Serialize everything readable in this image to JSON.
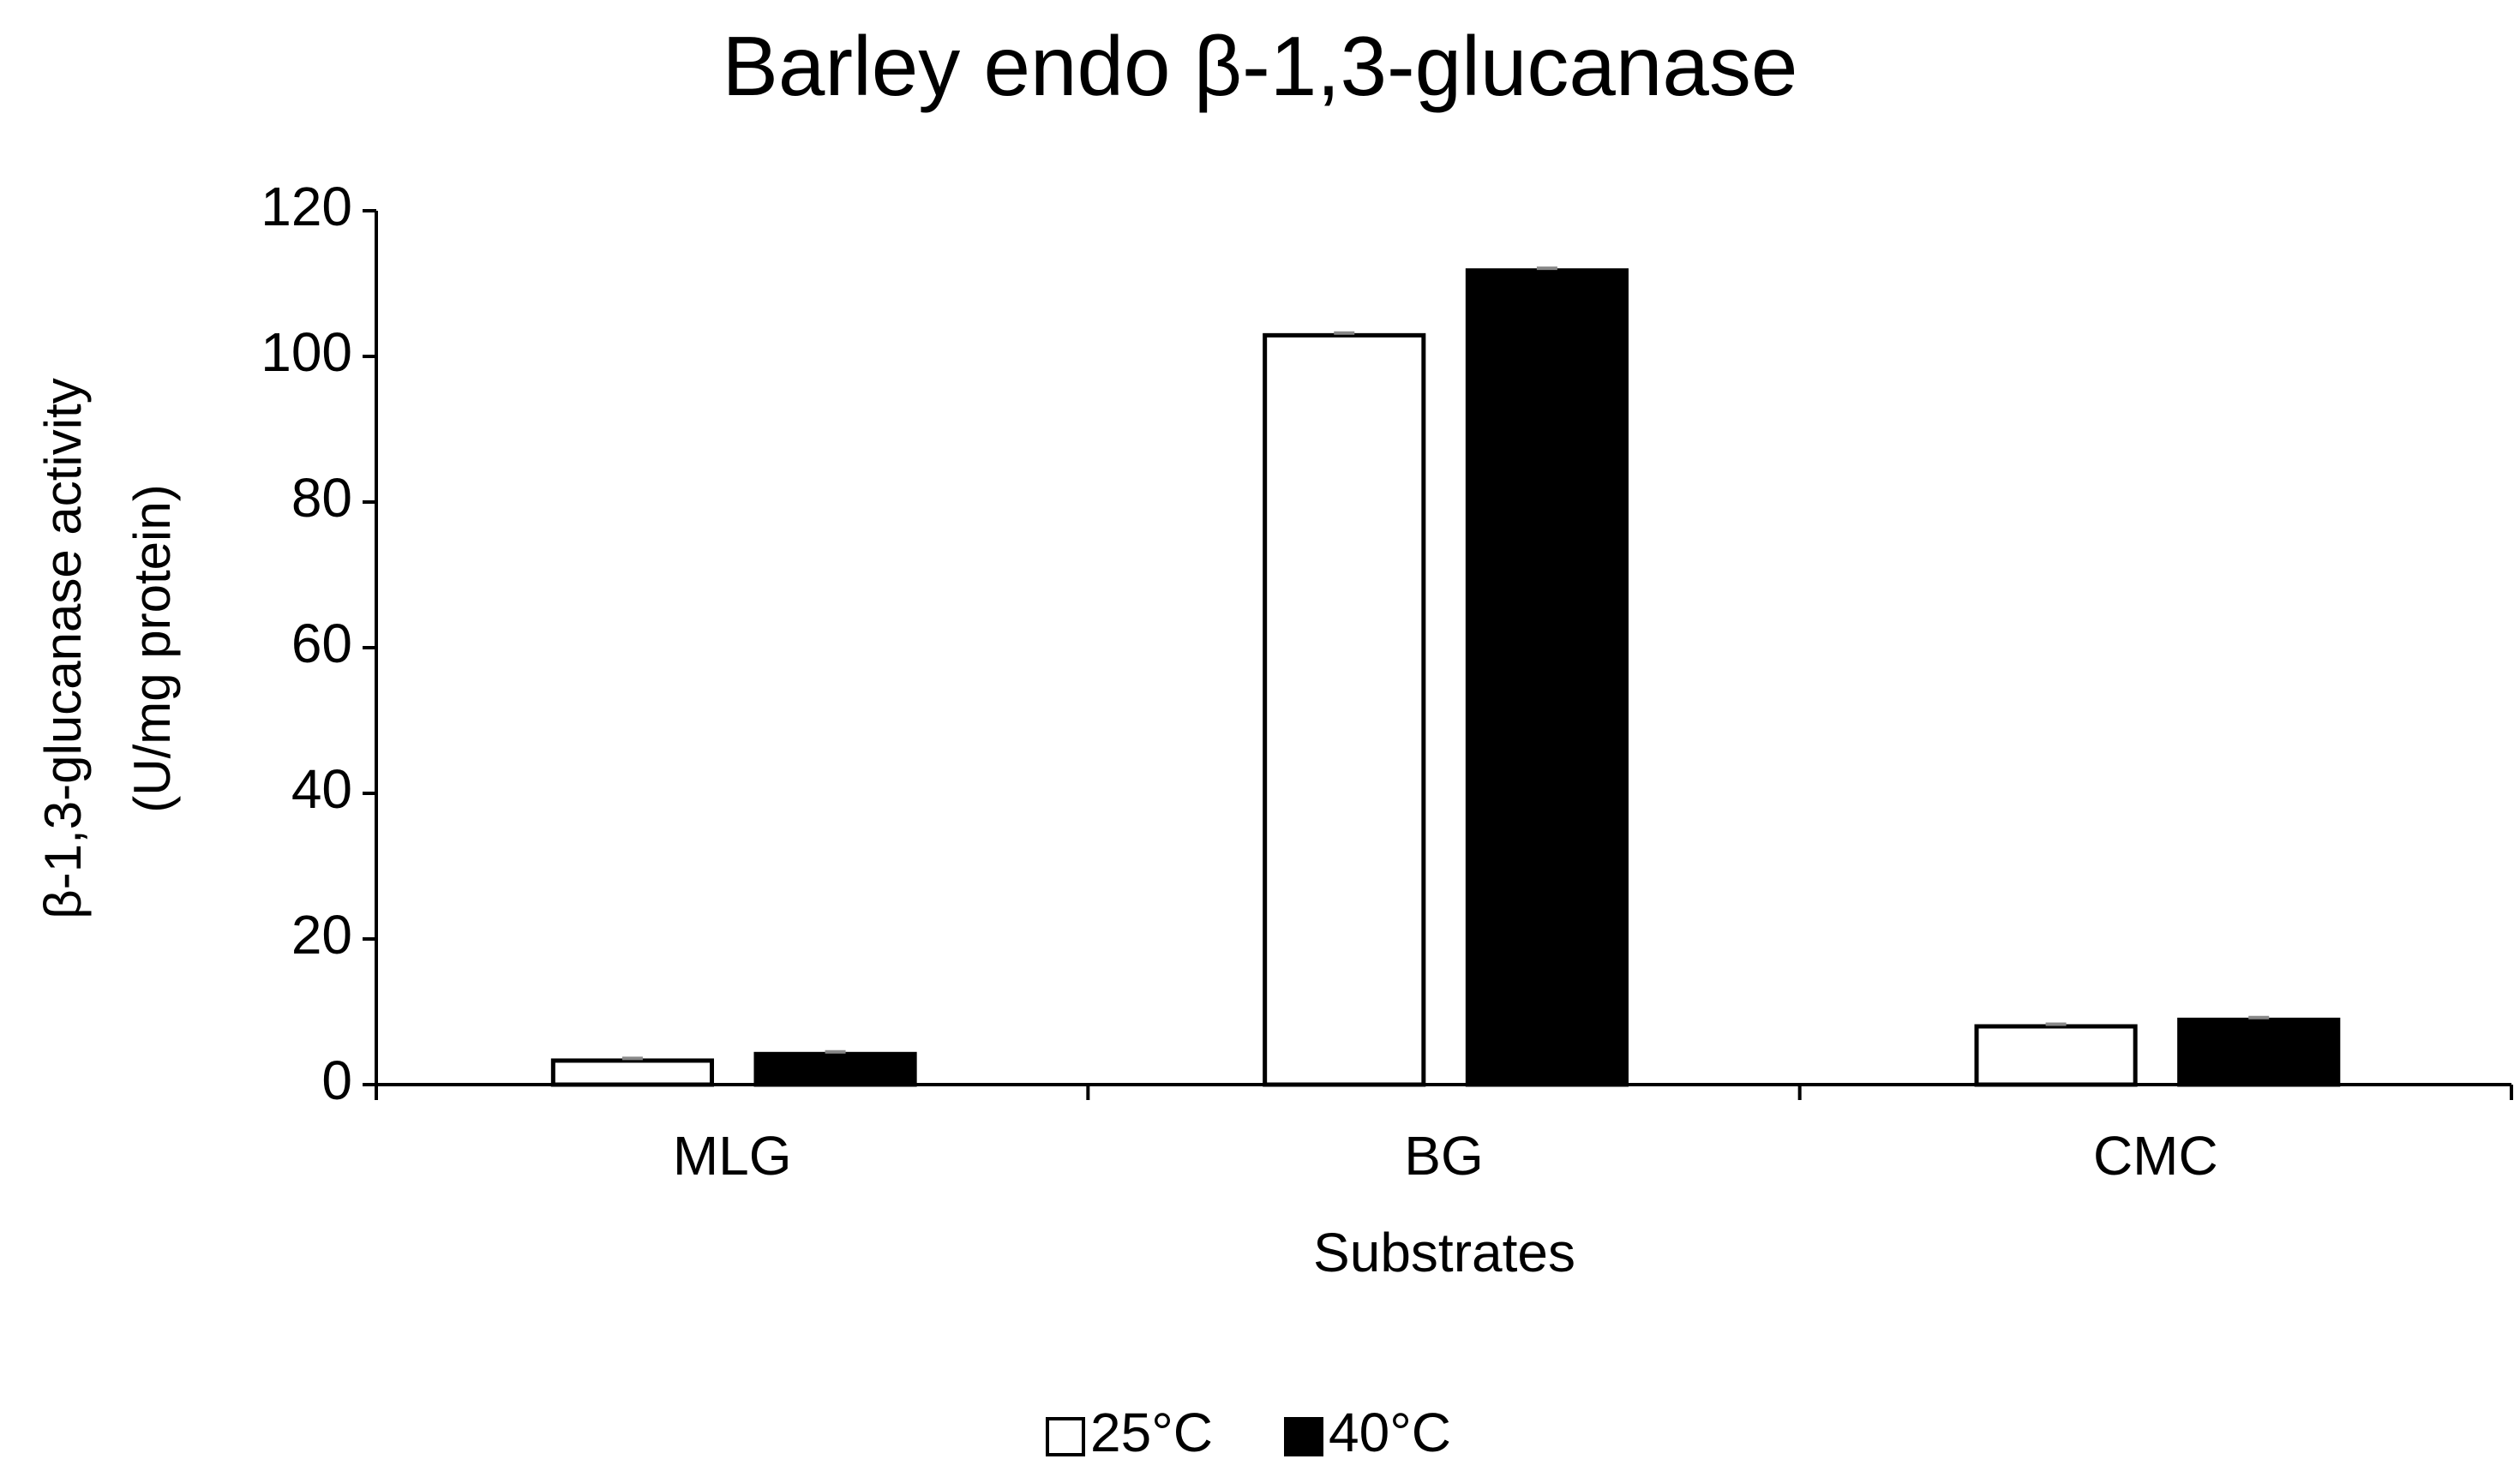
{
  "chart_data": {
    "type": "bar",
    "title": "Barley endo β-1,3-glucanase",
    "xlabel": "Substrates",
    "ylabel": [
      "β-1,3-glucanase activity",
      "(U/mg protein)"
    ],
    "categories": [
      "MLG",
      "BG",
      "CMC"
    ],
    "series": [
      {
        "name": "25°C",
        "color": "#ffffff",
        "values": [
          3.3,
          102.9,
          8.0
        ],
        "errors": [
          0.3,
          0.3,
          0.3
        ]
      },
      {
        "name": "40°C",
        "color": "#000000",
        "values": [
          4.2,
          111.8,
          8.9
        ],
        "errors": [
          0.3,
          0.3,
          0.3
        ]
      }
    ],
    "ylim": [
      0,
      120
    ],
    "yticks": [
      0,
      20,
      40,
      60,
      80,
      100,
      120
    ],
    "grid": false,
    "legend": "bottom"
  }
}
